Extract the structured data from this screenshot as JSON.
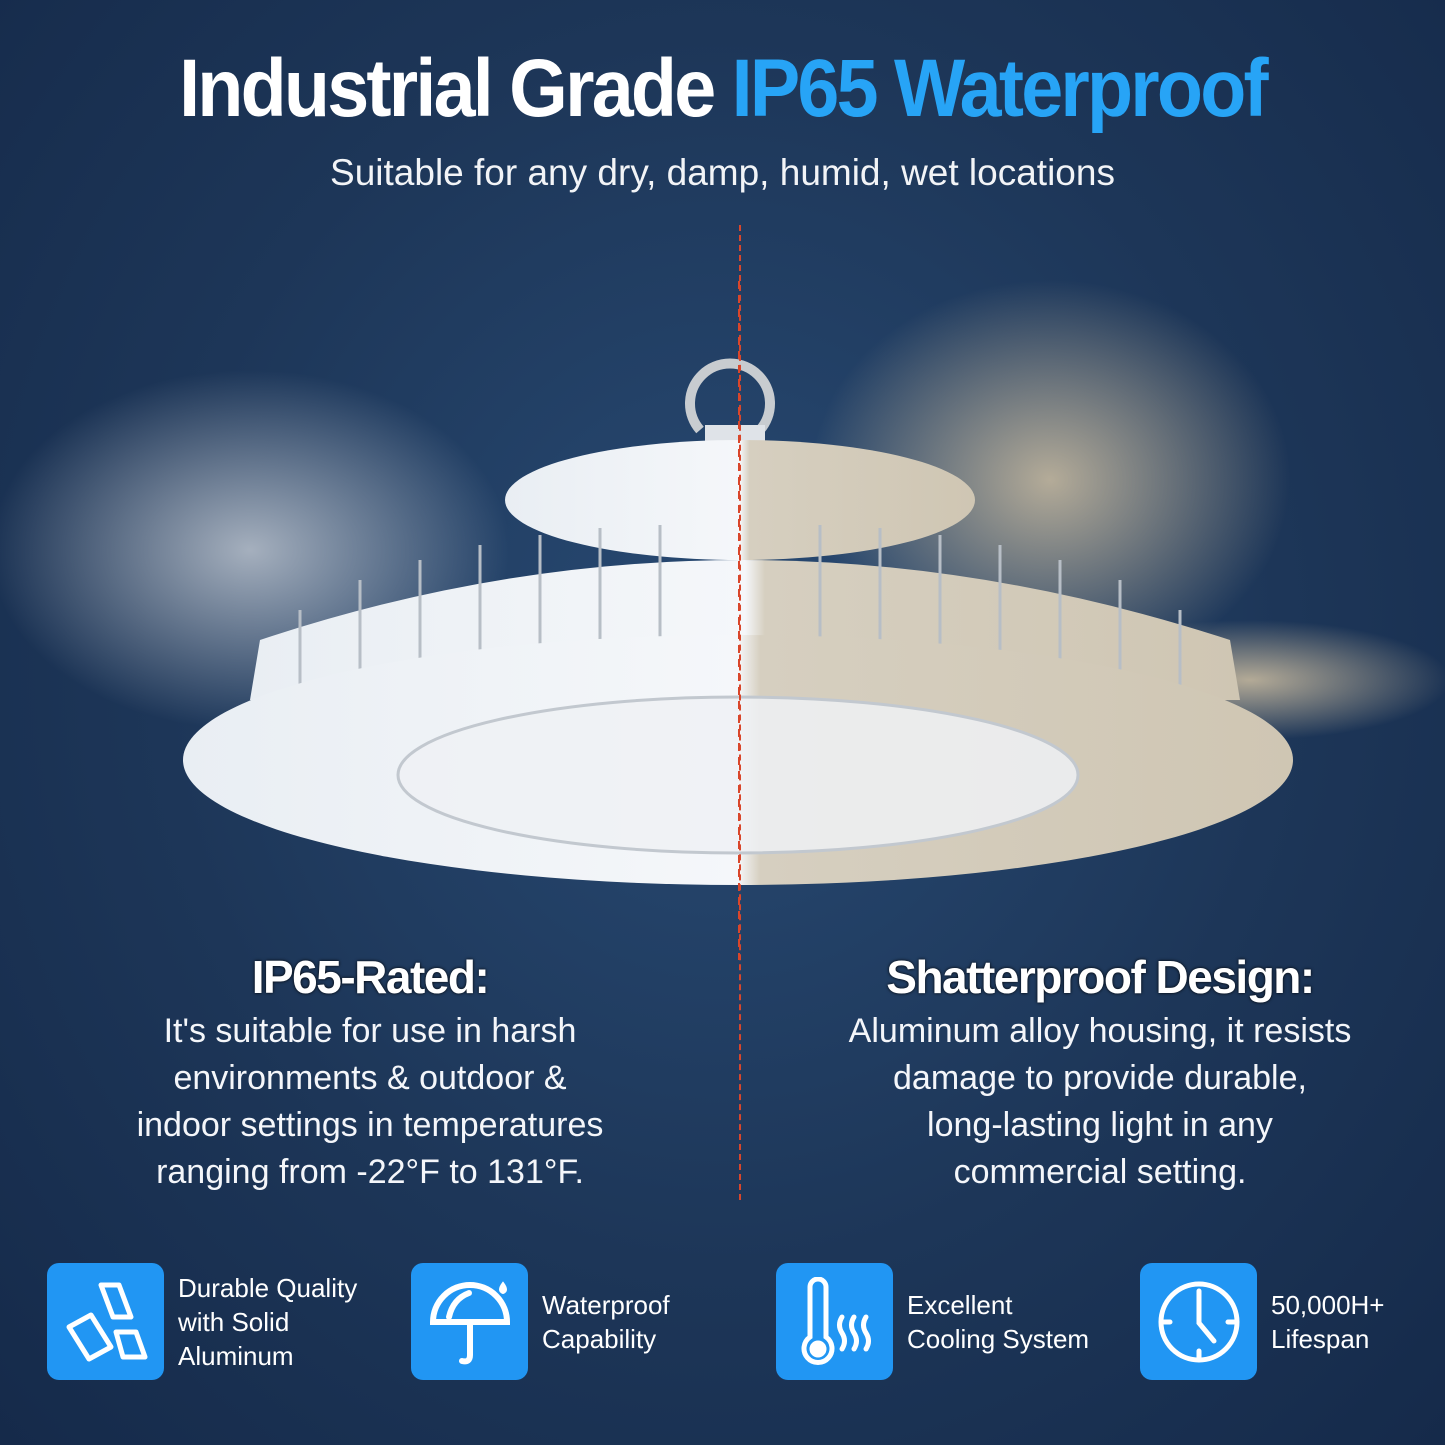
{
  "header": {
    "title_part1": "Industrial Grade",
    "title_part2": "IP65 Waterproof",
    "subtitle": "Suitable for any dry, damp, humid, wet locations"
  },
  "left": {
    "heading": "IP65-Rated:",
    "lines": [
      "It's suitable for use in harsh",
      "environments & outdoor &",
      "indoor settings in temperatures",
      "ranging from -22°F to 131°F."
    ]
  },
  "right": {
    "heading": "Shatterproof Design:",
    "lines": [
      "Aluminum alloy housing, it resists",
      "damage to provide durable,",
      "long-lasting light in any",
      "commercial setting."
    ]
  },
  "features": [
    {
      "icon": "aluminum-ingots-icon",
      "lines": [
        "Durable Quality",
        "with Solid",
        "Aluminum"
      ]
    },
    {
      "icon": "umbrella-icon",
      "lines": [
        "Waterproof",
        "Capability"
      ]
    },
    {
      "icon": "thermometer-icon",
      "lines": [
        "Excellent",
        "Cooling System"
      ]
    },
    {
      "icon": "clock-icon",
      "lines": [
        "50,000H+",
        "Lifespan"
      ]
    }
  ],
  "colors": {
    "background": "#1d3658",
    "accent": "#2196f3",
    "title_highlight": "#27a4f6",
    "divider": "#d9462b"
  }
}
